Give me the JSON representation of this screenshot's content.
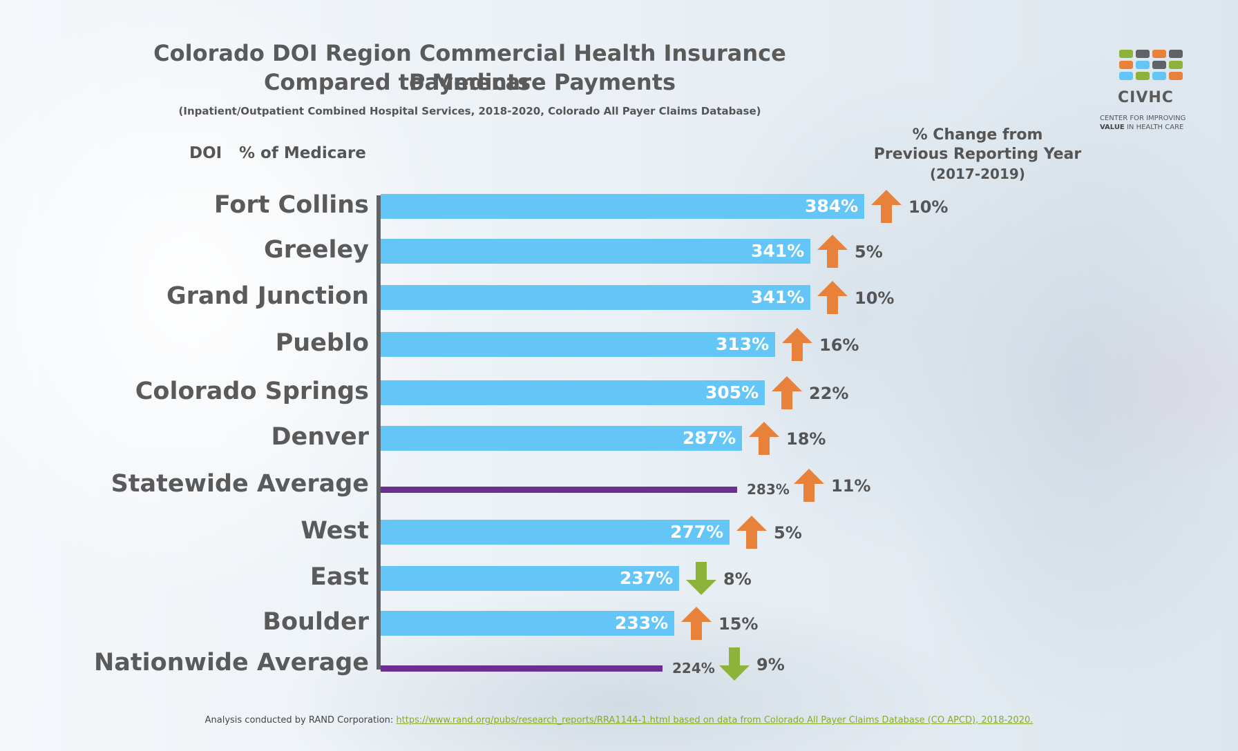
{
  "title_line1": "Colorado DOI Region Commercial Health Insurance Payments",
  "title_line2": "Compared to Medicare Payments",
  "subtitle": "(Inpatient/Outpatient Combined Hospital Services, 2018-2020, Colorado All Payer Claims Database)",
  "col_doi": "DOI",
  "col_pct": "% of Medicare",
  "change_header": [
    "% Change from",
    "Previous Reporting Year",
    "(2017-2019)"
  ],
  "logo": {
    "name": "CIVHC",
    "tagline_1": "CENTER FOR IMPROVING",
    "tagline_2a": "VALUE",
    "tagline_2b": " IN HEALTH CARE"
  },
  "footer": {
    "prefix": "Analysis conducted by RAND Corporation: ",
    "link": "https://www.rand.org/pubs/research_reports/RRA1144-1.html based on data from Colorado All Payer Claims Database (CO APCD), 2018-2020."
  },
  "colors": {
    "bar": "#63c6f7",
    "average_bar": "#6a2f91",
    "arrow_up": "#e8823a",
    "arrow_down": "#8db33a"
  },
  "chart_data": {
    "type": "bar",
    "orientation": "horizontal",
    "xlim": [
      0,
      384
    ],
    "rows": [
      {
        "label": "Fort Collins",
        "value": 384,
        "value_label": "384%",
        "kind": "region",
        "change": 10,
        "change_label": "10%",
        "direction": "up"
      },
      {
        "label": "Greeley",
        "value": 341,
        "value_label": "341%",
        "kind": "region",
        "change": 5,
        "change_label": "5%",
        "direction": "up"
      },
      {
        "label": "Grand Junction",
        "value": 341,
        "value_label": "341%",
        "kind": "region",
        "change": 10,
        "change_label": "10%",
        "direction": "up"
      },
      {
        "label": "Pueblo",
        "value": 313,
        "value_label": "313%",
        "kind": "region",
        "change": 16,
        "change_label": "16%",
        "direction": "up"
      },
      {
        "label": "Colorado Springs",
        "value": 305,
        "value_label": "305%",
        "kind": "region",
        "change": 22,
        "change_label": "22%",
        "direction": "up"
      },
      {
        "label": "Denver",
        "value": 287,
        "value_label": "287%",
        "kind": "region",
        "change": 18,
        "change_label": "18%",
        "direction": "up"
      },
      {
        "label": "Statewide Average",
        "value": 283,
        "value_label": "283%",
        "kind": "average",
        "change": 11,
        "change_label": "11%",
        "direction": "up"
      },
      {
        "label": "West",
        "value": 277,
        "value_label": "277%",
        "kind": "region",
        "change": 5,
        "change_label": "5%",
        "direction": "up"
      },
      {
        "label": "East",
        "value": 237,
        "value_label": "237%",
        "kind": "region",
        "change": -8,
        "change_label": "8%",
        "direction": "down"
      },
      {
        "label": "Boulder",
        "value": 233,
        "value_label": "233%",
        "kind": "region",
        "change": 15,
        "change_label": "15%",
        "direction": "up"
      },
      {
        "label": "Nationwide Average",
        "value": 224,
        "value_label": "224%",
        "kind": "average",
        "change": -9,
        "change_label": "9%",
        "direction": "down"
      }
    ]
  }
}
